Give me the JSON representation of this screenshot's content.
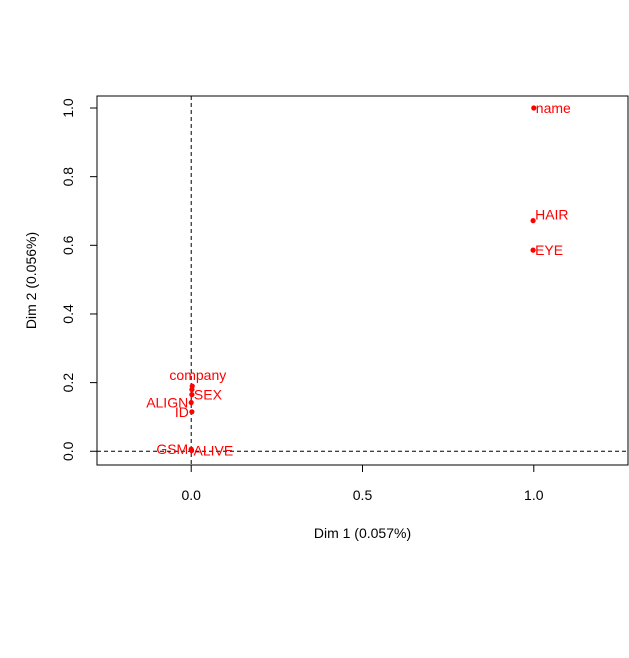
{
  "chart_data": {
    "type": "scatter",
    "title": "",
    "xlabel": "Dim 1 (0.057%)",
    "ylabel": "Dim 2 (0.056%)",
    "xlim": [
      -0.275,
      1.275
    ],
    "ylim": [
      -0.04,
      1.035
    ],
    "x_ticks": [
      {
        "value": 0.0,
        "label": "0.0"
      },
      {
        "value": 0.5,
        "label": "0.5"
      },
      {
        "value": 1.0,
        "label": "1.0"
      }
    ],
    "y_ticks": [
      {
        "value": 0.0,
        "label": "0.0"
      },
      {
        "value": 0.2,
        "label": "0.2"
      },
      {
        "value": 0.4,
        "label": "0.4"
      },
      {
        "value": 0.6,
        "label": "0.6"
      },
      {
        "value": 0.8,
        "label": "0.8"
      },
      {
        "value": 1.0,
        "label": "1.0"
      }
    ],
    "reference_lines": {
      "x": 0,
      "y": 0,
      "style": "dashed"
    },
    "grid": false,
    "point_color": "#ff0000",
    "points": [
      {
        "label": "name",
        "x": 1.0,
        "y": 1.0,
        "label_side": "right"
      },
      {
        "label": "HAIR",
        "x": 0.998,
        "y": 0.672,
        "label_side": "upper-right"
      },
      {
        "label": "EYE",
        "x": 0.998,
        "y": 0.586,
        "label_side": "right"
      },
      {
        "label": "company",
        "x": 0.003,
        "y": 0.19,
        "label_side": "above-left"
      },
      {
        "label": "company",
        "x": 0.002,
        "y": 0.18,
        "label_side": "none"
      },
      {
        "label": "SEX",
        "x": 0.002,
        "y": 0.165,
        "label_side": "right"
      },
      {
        "label": "ALIGN",
        "x": 0.0,
        "y": 0.142,
        "label_side": "left"
      },
      {
        "label": "ID",
        "x": 0.002,
        "y": 0.115,
        "label_side": "left"
      },
      {
        "label": "GSM",
        "x": 0.0,
        "y": 0.006,
        "label_side": "left"
      },
      {
        "label": "ALIVE",
        "x": 0.001,
        "y": 0.002,
        "label_side": "right"
      }
    ]
  }
}
